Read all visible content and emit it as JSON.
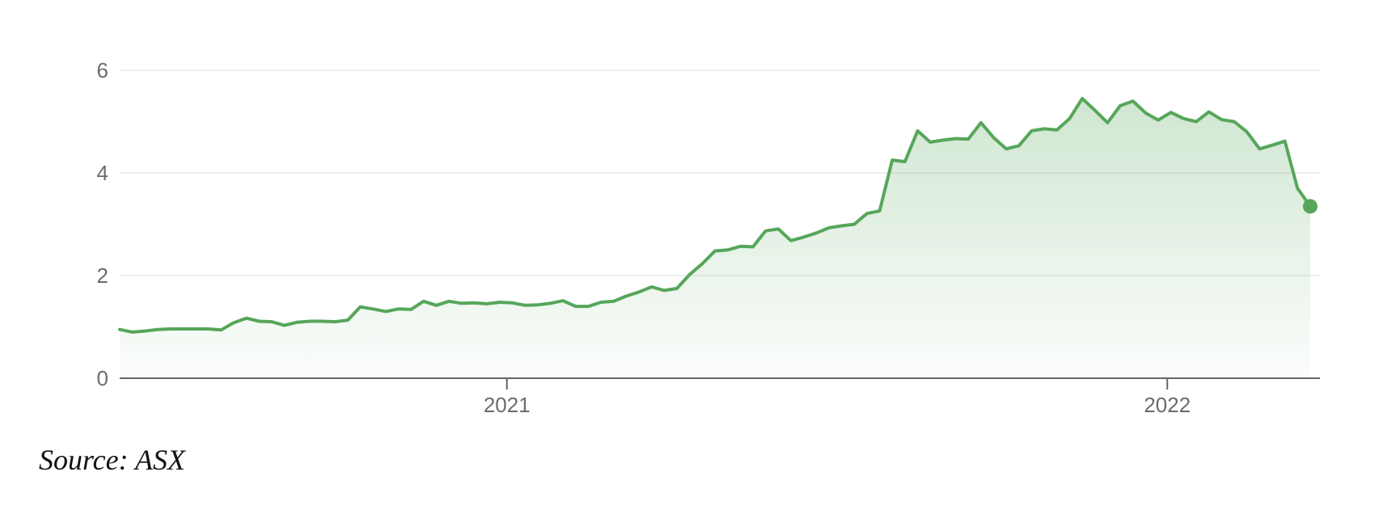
{
  "chart_data": {
    "type": "area",
    "x_ticks": [
      "2021",
      "2022"
    ],
    "y_ticks": [
      0,
      2,
      4,
      6
    ],
    "ylim": [
      0,
      6.8
    ],
    "grid": true,
    "legend": "none",
    "colors": {
      "line": "#56a65a",
      "fill": "#56a65a",
      "grid": "#ebebeb",
      "axis": "#666666"
    },
    "start_date": "2020-06-01",
    "series": [
      {
        "x": [
          "2020-06-01",
          "2020-06-08",
          "2020-06-15",
          "2020-06-22",
          "2020-06-29",
          "2020-07-06",
          "2020-07-13",
          "2020-07-20",
          "2020-07-27",
          "2020-08-03",
          "2020-08-10",
          "2020-08-17",
          "2020-08-24",
          "2020-08-31",
          "2020-09-07",
          "2020-09-14",
          "2020-09-21",
          "2020-09-28",
          "2020-10-05",
          "2020-10-12",
          "2020-10-19",
          "2020-10-26",
          "2020-11-02",
          "2020-11-09",
          "2020-11-16",
          "2020-11-23",
          "2020-11-30",
          "2020-12-07",
          "2020-12-14",
          "2020-12-21",
          "2020-12-28",
          "2021-01-04",
          "2021-01-11",
          "2021-01-18",
          "2021-01-25",
          "2021-02-01",
          "2021-02-08",
          "2021-02-15",
          "2021-02-22",
          "2021-03-01",
          "2021-03-08",
          "2021-03-15",
          "2021-03-22",
          "2021-03-29",
          "2021-04-05",
          "2021-04-12",
          "2021-04-19",
          "2021-04-26",
          "2021-05-03",
          "2021-05-10",
          "2021-05-17",
          "2021-05-24",
          "2021-05-31",
          "2021-06-07",
          "2021-06-14",
          "2021-06-21",
          "2021-06-28",
          "2021-07-05",
          "2021-07-12",
          "2021-07-19",
          "2021-07-26",
          "2021-08-02",
          "2021-08-09",
          "2021-08-16",
          "2021-08-23",
          "2021-08-30",
          "2021-09-06",
          "2021-09-13",
          "2021-09-20",
          "2021-09-27",
          "2021-10-04",
          "2021-10-11",
          "2021-10-18",
          "2021-10-25",
          "2021-11-01",
          "2021-11-08",
          "2021-11-15",
          "2021-11-22",
          "2021-11-29",
          "2021-12-06",
          "2021-12-13",
          "2021-12-20",
          "2021-12-27",
          "2022-01-03",
          "2022-01-10",
          "2022-01-17",
          "2022-01-24",
          "2022-01-31",
          "2022-02-07",
          "2022-02-14",
          "2022-02-21",
          "2022-02-28",
          "2022-03-07",
          "2022-03-14",
          "2022-03-21"
        ],
        "values": [
          0.95,
          0.9,
          0.92,
          0.95,
          0.96,
          0.96,
          0.96,
          0.96,
          0.94,
          1.08,
          1.17,
          1.11,
          1.1,
          1.03,
          1.09,
          1.11,
          1.11,
          1.1,
          1.13,
          1.39,
          1.35,
          1.3,
          1.35,
          1.34,
          1.5,
          1.42,
          1.5,
          1.46,
          1.47,
          1.45,
          1.48,
          1.47,
          1.42,
          1.43,
          1.46,
          1.51,
          1.4,
          1.4,
          1.48,
          1.5,
          1.6,
          1.68,
          1.78,
          1.71,
          1.75,
          2.02,
          2.23,
          2.48,
          2.5,
          2.57,
          2.56,
          2.87,
          2.91,
          2.68,
          2.75,
          2.83,
          2.93,
          2.97,
          3.0,
          3.21,
          3.26,
          4.25,
          4.22,
          4.82,
          4.6,
          4.64,
          4.67,
          4.66,
          4.98,
          4.69,
          4.47,
          4.53,
          4.82,
          4.86,
          4.84,
          5.06,
          5.45,
          5.22,
          4.98,
          5.31,
          5.4,
          5.17,
          5.03,
          5.18,
          5.06,
          5.0,
          5.19,
          5.04,
          5.0,
          4.8,
          4.47,
          4.54,
          4.62,
          3.7,
          3.35
        ]
      }
    ]
  },
  "source_text": "Source: ASX"
}
